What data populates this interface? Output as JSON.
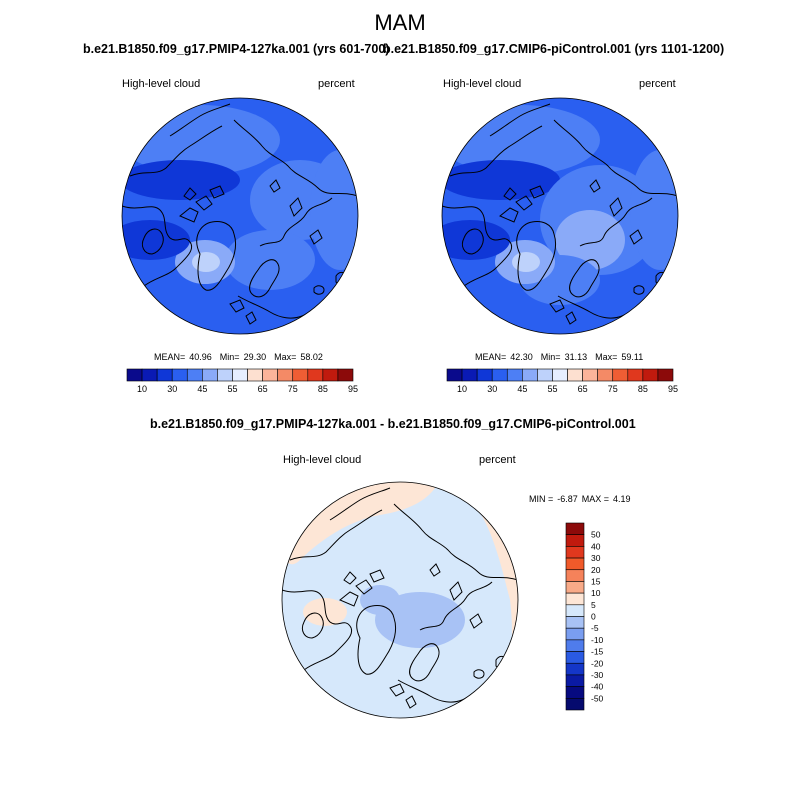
{
  "figure": {
    "title": "MAM"
  },
  "panels": [
    {
      "title": "b.e21.B1850.f09_g17.PMIP4-127ka.001 (yrs 601-700)",
      "variable": "High-level cloud",
      "units": "percent",
      "stats": {
        "mean_label": "MEAN=",
        "mean": "40.96",
        "min_label": "Min=",
        "min": "29.30",
        "max_label": "Max=",
        "max": "58.02"
      },
      "colorbar_ticks": [
        "10",
        "30",
        "45",
        "55",
        "65",
        "75",
        "85",
        "95"
      ]
    },
    {
      "title": "b.e21.B1850.f09_g17.CMIP6-piControl.001 (yrs 1101-1200)",
      "variable": "High-level cloud",
      "units": "percent",
      "stats": {
        "mean_label": "MEAN=",
        "mean": "42.30",
        "min_label": "Min=",
        "min": "31.13",
        "max_label": "Max=",
        "max": "59.11"
      },
      "colorbar_ticks": [
        "10",
        "30",
        "45",
        "55",
        "65",
        "75",
        "85",
        "95"
      ]
    }
  ],
  "difference": {
    "title": "b.e21.B1850.f09_g17.PMIP4-127ka.001 - b.e21.B1850.f09_g17.CMIP6-piControl.001",
    "variable": "High-level cloud",
    "units": "percent",
    "stats": {
      "min_label": "MIN =",
      "min": "-6.87",
      "max_label": "MAX =",
      "max": "4.19"
    },
    "colorbar_ticks": [
      "50",
      "40",
      "30",
      "20",
      "15",
      "10",
      "5",
      "0",
      "-5",
      "-10",
      "-15",
      "-20",
      "-30",
      "-40",
      "-50"
    ]
  },
  "colors": {
    "abs_scale": [
      "#0a0a8c",
      "#0a1ab4",
      "#0f37d7",
      "#2a5ff0",
      "#4d7ff5",
      "#8aaaf8",
      "#bed2fb",
      "#e6eeff",
      "#fde0d0",
      "#fbb49a",
      "#f48a66",
      "#ef5d34",
      "#e0381e",
      "#c01a0e",
      "#8c0a0a"
    ],
    "diff_scale": [
      "#8c0a0a",
      "#c01a0e",
      "#e0381e",
      "#f05a2a",
      "#f5825a",
      "#f8aa88",
      "#fde6d6",
      "#d6e8fb",
      "#a8c2f5",
      "#7a9ef0",
      "#4f7cec",
      "#2a5ae3",
      "#1436c8",
      "#0a1aa4",
      "#060a80"
    ]
  }
}
